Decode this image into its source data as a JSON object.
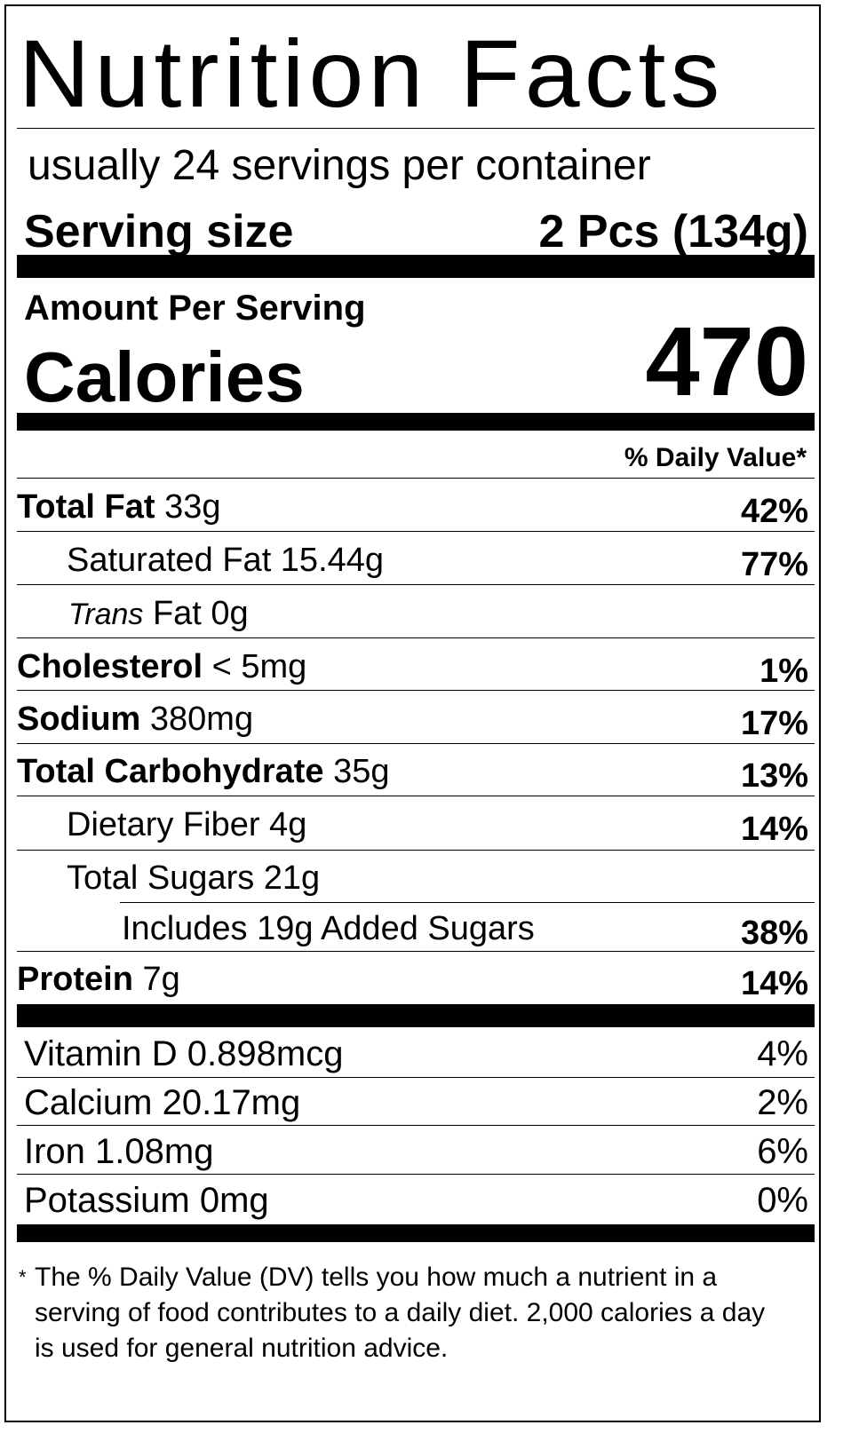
{
  "title": "Nutrition Facts",
  "servings_per_container": "usually 24 servings per container",
  "serving_size": {
    "label": "Serving size",
    "value": "2 Pcs (134g)"
  },
  "amount_per_serving": "Amount Per Serving",
  "calories": {
    "label": "Calories",
    "value": "470"
  },
  "daily_value_header": "% Daily Value*",
  "nutrients": {
    "total_fat": {
      "name": "Total Fat",
      "amount": "33g",
      "dv": "42%"
    },
    "saturated_fat": {
      "name": "Saturated Fat 15.44g",
      "dv": "77%"
    },
    "trans_fat": {
      "name_italic": "Trans",
      "name_rest": "Fat 0g"
    },
    "cholesterol": {
      "name": "Cholesterol",
      "amount": "< 5mg",
      "dv": "1%"
    },
    "sodium": {
      "name": "Sodium",
      "amount": "380mg",
      "dv": "17%"
    },
    "total_carbohydrate": {
      "name": "Total Carbohydrate",
      "amount": "35g",
      "dv": "13%"
    },
    "dietary_fiber": {
      "name": "Dietary Fiber 4g",
      "dv": "14%"
    },
    "total_sugars": {
      "name": "Total Sugars 21g"
    },
    "added_sugars": {
      "name": "Includes 19g Added Sugars",
      "dv": "38%"
    },
    "protein": {
      "name": "Protein",
      "amount": "7g",
      "dv": "14%"
    }
  },
  "vitamins": [
    {
      "name": "Vitamin D 0.898mcg",
      "dv": "4%"
    },
    {
      "name": "Calcium 20.17mg",
      "dv": "2%"
    },
    {
      "name": "Iron 1.08mg",
      "dv": "6%"
    },
    {
      "name": "Potassium 0mg",
      "dv": "0%"
    }
  ],
  "footnote": {
    "marker": "*",
    "text": "The % Daily Value (DV) tells you how much a nutrient in a serving of food contributes to a daily diet. 2,000 calories a day is used for general nutrition advice."
  }
}
